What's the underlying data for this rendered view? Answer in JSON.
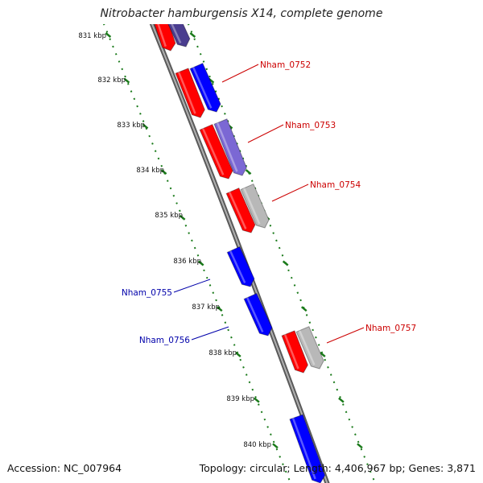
{
  "title": "Nitrobacter hamburgensis X14, complete genome",
  "accession_text": "Accession: NC_007964",
  "summary_text": "Topology: circular; Length: 4,406,967 bp; Genes: 3,871",
  "colors": {
    "forward_gene": "#ff0000",
    "reverse_gene": "#0000ff",
    "cog_dark": "#4a3d8f",
    "cog_light": "#7b68d4",
    "cog_grey": "#b8b8b8",
    "backbone": "#888888",
    "tick": "#1a7a1a",
    "forward_label": "#cc0000",
    "reverse_label": "#0000aa"
  },
  "scale_ticks": [
    {
      "label": "831 kbp"
    },
    {
      "label": "832 kbp"
    },
    {
      "label": "833 kbp"
    },
    {
      "label": "834 kbp"
    },
    {
      "label": "835 kbp"
    },
    {
      "label": "836 kbp"
    },
    {
      "label": "837 kbp"
    },
    {
      "label": "838 kbp"
    },
    {
      "label": "839 kbp"
    },
    {
      "label": "840 kbp"
    }
  ],
  "gene_labels": [
    {
      "text": "Nham_0752",
      "strand": "forward"
    },
    {
      "text": "Nham_0753",
      "strand": "forward"
    },
    {
      "text": "Nham_0754",
      "strand": "forward"
    },
    {
      "text": "Nham_0755",
      "strand": "reverse"
    },
    {
      "text": "Nham_0756",
      "strand": "reverse"
    },
    {
      "text": "Nham_0757",
      "strand": "forward"
    }
  ]
}
